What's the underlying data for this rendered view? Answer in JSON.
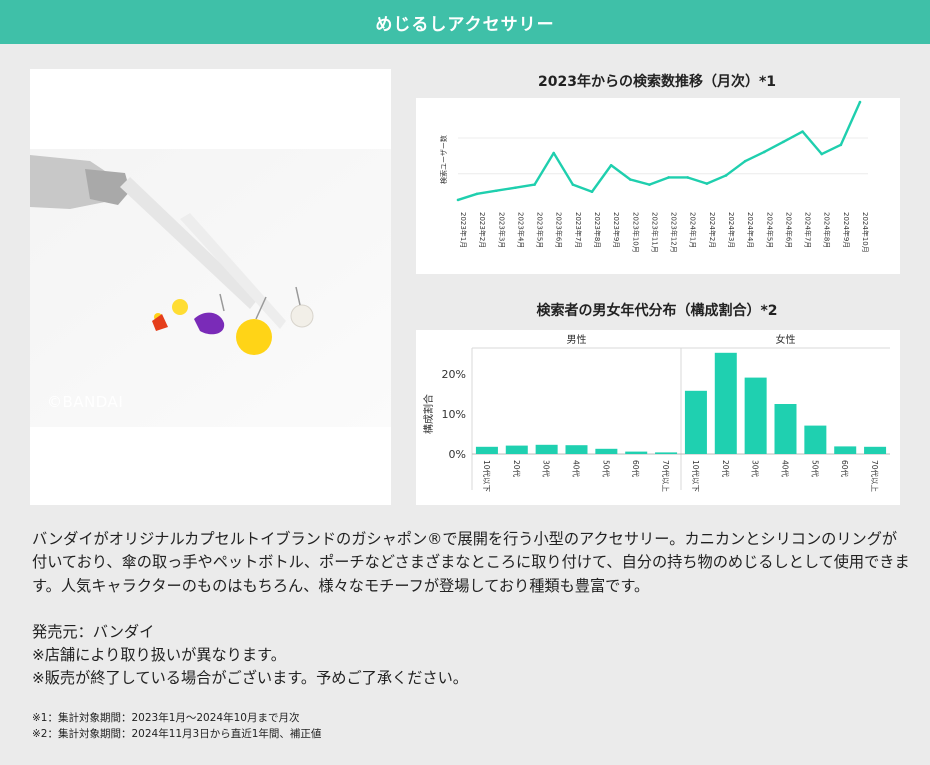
{
  "header": {
    "title": "めじるしアクセサリー"
  },
  "photo": {
    "credit": "©BANDAI"
  },
  "charts": {
    "trend_title": "2023年からの検索数推移（月次）*1",
    "dist_title": "検索者の男女年代分布（構成割合）*2"
  },
  "chart_data": [
    {
      "type": "line",
      "title": "2023年からの検索数推移（月次）*1",
      "ylabel": "検索ユーザー数",
      "xlabel": "",
      "grid": true,
      "x": [
        "2023年1月",
        "2023年2月",
        "2023年3月",
        "2023年4月",
        "2023年5月",
        "2023年6月",
        "2023年7月",
        "2023年8月",
        "2023年9月",
        "2023年10月",
        "2023年11月",
        "2023年12月",
        "2024年1月",
        "2024年2月",
        "2024年3月",
        "2024年4月",
        "2024年5月",
        "2024年6月",
        "2024年7月",
        "2024年8月",
        "2024年9月",
        "2024年10月"
      ],
      "values": [
        4,
        10,
        13,
        16,
        19,
        50,
        19,
        12,
        38,
        24,
        19,
        26,
        26,
        20,
        28,
        42,
        51,
        61,
        71,
        49,
        58,
        100
      ],
      "ylim": [
        0,
        100
      ]
    },
    {
      "type": "bar",
      "title": "検索者の男女年代分布（構成割合）*2",
      "ylabel": "構成割合",
      "groups": [
        "男性",
        "女性"
      ],
      "categories": [
        "10代以下",
        "20代",
        "30代",
        "40代",
        "50代",
        "60代",
        "70代以上"
      ],
      "series": [
        {
          "name": "男性",
          "values": [
            1.8,
            2.1,
            2.3,
            2.2,
            1.3,
            0.6,
            0.4
          ]
        },
        {
          "name": "女性",
          "values": [
            15.8,
            25.3,
            19.1,
            12.5,
            7.1,
            1.9,
            1.8
          ]
        }
      ],
      "yticks": [
        "0%",
        "10%",
        "20%"
      ],
      "ylim": [
        0,
        26
      ],
      "color": "#1fd0b0"
    }
  ],
  "description": "バンダイがオリジナルカプセルトイブランドのガシャポン®で展開を行う小型のアクセサリー。カニカンとシリコンのリングが付いており、傘の取っ手やペットボトル、ポーチなどさまざまなところに取り付けて、自分の持ち物のめじるしとして使用できます。人気キャラクターのものはもちろん、様々なモチーフが登場しており種類も豊富です。",
  "notes": {
    "maker": "発売元：バンダイ",
    "note1": "※店舗により取り扱いが異なります。",
    "note2": "※販売が終了している場合がございます。予めご了承ください。"
  },
  "footnotes": {
    "f1": "※1：集計対象期間：2023年1月～2024年10月まで月次",
    "f2": "※2：集計対象期間：2024年11月3日から直近1年間、補正値"
  },
  "colors": {
    "header": "#3fc0a8",
    "accent": "#1fd0b0",
    "line": "#1fcfae"
  }
}
